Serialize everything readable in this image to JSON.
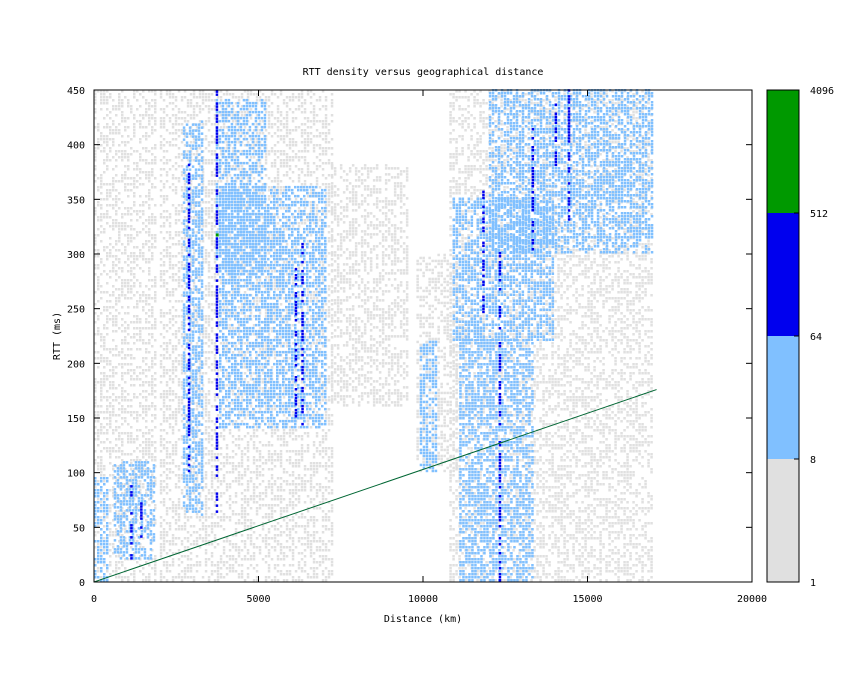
{
  "chart_data": {
    "type": "heatmap",
    "title": "RTT density versus geographical distance",
    "xlabel": "Distance (km)",
    "ylabel": "RTT (ms)",
    "xlim": [
      0,
      20000
    ],
    "ylim": [
      0,
      450
    ],
    "xticks": [
      0,
      5000,
      10000,
      15000,
      20000
    ],
    "yticks": [
      0,
      50,
      100,
      150,
      200,
      250,
      300,
      350,
      400,
      450
    ],
    "colorbar": {
      "ticks": [
        "1",
        "8",
        "64",
        "512",
        "4096"
      ],
      "bands": [
        {
          "from": "1",
          "to": "8",
          "color": "#e0e0e0"
        },
        {
          "from": "8",
          "to": "64",
          "color": "#80c0ff"
        },
        {
          "from": "64",
          "to": "512",
          "color": "#0000ee"
        },
        {
          "from": "512",
          "to": "4096",
          "color": "#009900"
        }
      ]
    },
    "reference_line": {
      "color": "#006633",
      "points": [
        [
          0,
          0
        ],
        [
          17100,
          176
        ]
      ]
    },
    "density_regions": [
      {
        "level": "low",
        "x": [
          0,
          1900
        ],
        "y": [
          0,
          450
        ]
      },
      {
        "level": "mid",
        "x": [
          0,
          400
        ],
        "y": [
          0,
          95
        ]
      },
      {
        "level": "mid",
        "x": [
          600,
          1800
        ],
        "y": [
          20,
          110
        ]
      },
      {
        "level": "low",
        "x": [
          2000,
          7200
        ],
        "y": [
          0,
          450
        ]
      },
      {
        "level": "low",
        "x": [
          7200,
          9500
        ],
        "y": [
          160,
          380
        ]
      },
      {
        "level": "mid",
        "x": [
          3800,
          7000
        ],
        "y": [
          140,
          360
        ]
      },
      {
        "level": "mid",
        "x": [
          3700,
          5200
        ],
        "y": [
          280,
          440
        ]
      },
      {
        "level": "mid",
        "x": [
          2700,
          3300
        ],
        "y": [
          60,
          420
        ]
      },
      {
        "level": "low",
        "x": [
          9800,
          11000
        ],
        "y": [
          100,
          300
        ]
      },
      {
        "level": "mid",
        "x": [
          9900,
          10400
        ],
        "y": [
          100,
          220
        ]
      },
      {
        "level": "low",
        "x": [
          10800,
          17000
        ],
        "y": [
          0,
          450
        ]
      },
      {
        "level": "mid",
        "x": [
          10900,
          14000
        ],
        "y": [
          220,
          350
        ]
      },
      {
        "level": "mid",
        "x": [
          12000,
          17000
        ],
        "y": [
          300,
          450
        ]
      },
      {
        "level": "mid",
        "x": [
          11100,
          13300
        ],
        "y": [
          0,
          220
        ]
      }
    ],
    "hot_columns": [
      {
        "x": 3700,
        "y": [
          60,
          450
        ],
        "level": "high"
      },
      {
        "x": 2850,
        "y": [
          100,
          380
        ],
        "level": "high"
      },
      {
        "x": 12300,
        "y": [
          0,
          300
        ],
        "level": "high"
      },
      {
        "x": 13300,
        "y": [
          300,
          420
        ],
        "level": "high"
      },
      {
        "x": 14400,
        "y": [
          330,
          450
        ],
        "level": "high"
      },
      {
        "x": 6100,
        "y": [
          150,
          290
        ],
        "level": "high"
      },
      {
        "x": 6300,
        "y": [
          140,
          310
        ],
        "level": "high"
      },
      {
        "x": 11800,
        "y": [
          240,
          360
        ],
        "level": "high"
      },
      {
        "x": 14000,
        "y": [
          380,
          450
        ],
        "level": "high"
      },
      {
        "x": 1100,
        "y": [
          20,
          90
        ],
        "level": "high"
      },
      {
        "x": 1400,
        "y": [
          40,
          80
        ],
        "level": "high"
      }
    ],
    "peak_cells": [
      {
        "x": 3700,
        "y": 316,
        "level": "max"
      }
    ]
  }
}
